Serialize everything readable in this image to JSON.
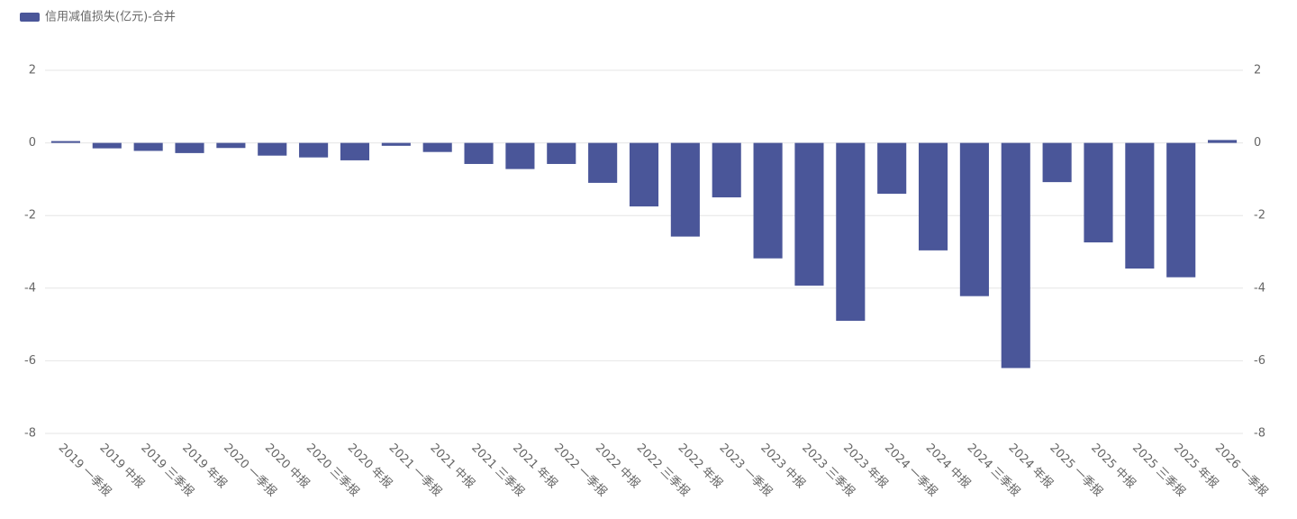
{
  "chart_data": {
    "type": "bar",
    "legend": "信用减值损失(亿元)-合并",
    "legend_position": "top-left",
    "color": "#4a5699",
    "categories": [
      "2019 一季报",
      "2019 中报",
      "2019 三季报",
      "2019 年报",
      "2020 一季报",
      "2020 中报",
      "2020 三季报",
      "2020 年报",
      "2021 一季报",
      "2021 中报",
      "2021 三季报",
      "2021 年报",
      "2022 一季报",
      "2022 中报",
      "2022 三季报",
      "2022 年报",
      "2023 一季报",
      "2023 中报",
      "2023 三季报",
      "2023 年报",
      "2024 一季报",
      "2024 中报",
      "2024 三季报",
      "2024 年报",
      "2025 一季报",
      "2025 中报",
      "2025 三季报",
      "2025 年报",
      "2026 一季报"
    ],
    "values": [
      0.05,
      -0.15,
      -0.22,
      -0.28,
      -0.14,
      -0.35,
      -0.4,
      -0.48,
      -0.08,
      -0.25,
      -0.58,
      -0.72,
      -0.58,
      -1.1,
      -1.75,
      -2.58,
      -1.5,
      -3.18,
      -3.93,
      -4.9,
      -1.4,
      -2.96,
      -4.22,
      -6.2,
      -1.08,
      -2.74,
      -3.46,
      -3.7,
      0.08
    ],
    "ylim": [
      -8,
      2
    ],
    "yticks": [
      -8,
      -6,
      -4,
      -2,
      0,
      2
    ],
    "y2lim": [
      -8,
      2
    ],
    "y2ticks": [
      -8,
      -6,
      -4,
      -2,
      0,
      2
    ],
    "grid": true
  }
}
